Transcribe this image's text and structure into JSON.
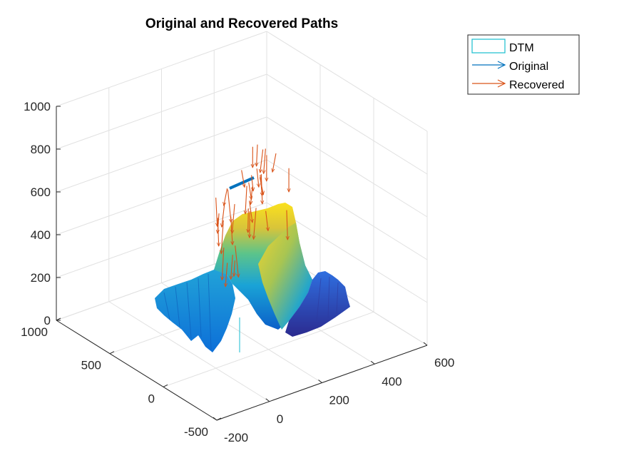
{
  "chart_data": {
    "type": "surface3d",
    "title": "Original and Recovered Paths",
    "xlabel": "",
    "ylabel": "",
    "zlabel": "",
    "x_ticks": [
      -200,
      0,
      200,
      400,
      600
    ],
    "y_ticks": [
      -500,
      0,
      500,
      1000
    ],
    "z_ticks": [
      0,
      200,
      400,
      600,
      800,
      1000
    ],
    "xlim": [
      -200,
      600
    ],
    "ylim": [
      -500,
      1000
    ],
    "zlim": [
      0,
      1000
    ],
    "grid": true,
    "legend": {
      "placement": "top-right-outside",
      "entries": [
        {
          "label": "DTM",
          "kind": "surface",
          "color": "#17becf"
        },
        {
          "label": "Original",
          "kind": "quiver",
          "color": "#0072bd"
        },
        {
          "label": "Recovered",
          "kind": "quiver",
          "color": "#d95319"
        }
      ]
    },
    "series": [
      {
        "name": "DTM",
        "type": "surface",
        "colormap": "parula",
        "z_range": [
          0,
          550
        ]
      },
      {
        "name": "Original",
        "type": "quiver",
        "color": "#0072bd",
        "z_level": 600
      },
      {
        "name": "Recovered",
        "type": "quiver",
        "color": "#d95319",
        "z_range": [
          280,
          680
        ]
      }
    ]
  }
}
